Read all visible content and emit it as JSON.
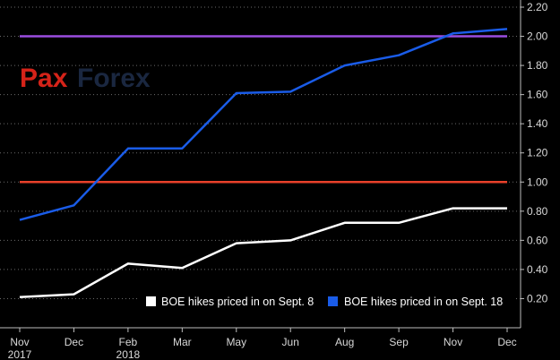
{
  "watermark": {
    "part1": "Pax",
    "part2": "Forex"
  },
  "colors": {
    "background": "#000000",
    "grid": "#6b6b6b",
    "white_series": "#ffffff",
    "blue_series": "#1a5ce8",
    "purple_line": "#9b4de0",
    "red_line": "#e8402a"
  },
  "chart_data": {
    "type": "line",
    "x": [
      "Nov\n2017",
      "Dec",
      "Feb\n2018",
      "Mar",
      "May",
      "Jun",
      "Aug",
      "Sep",
      "Nov",
      "Dec"
    ],
    "series": [
      {
        "name": "BOE hikes priced in on Sept. 8",
        "color": "#ffffff",
        "values": [
          0.21,
          0.23,
          0.44,
          0.41,
          0.58,
          0.6,
          0.72,
          0.72,
          0.82,
          0.82
        ]
      },
      {
        "name": "BOE hikes priced in on Sept. 18",
        "color": "#1a5ce8",
        "values": [
          0.74,
          0.84,
          1.23,
          1.23,
          1.61,
          1.62,
          1.8,
          1.87,
          2.02,
          2.05
        ]
      }
    ],
    "reference_lines": [
      {
        "value": 2.0,
        "color": "#9b4de0"
      },
      {
        "value": 1.0,
        "color": "#e8402a"
      }
    ],
    "yticks": [
      "0.20",
      "0.40",
      "0.60",
      "0.80",
      "1.00",
      "1.20",
      "1.40",
      "1.60",
      "1.80",
      "2.00",
      "2.20"
    ],
    "ylim": [
      0.0,
      2.2
    ],
    "y_axis_side": "right",
    "grid": "horizontal-dotted",
    "legend": "bottom-right",
    "title": "",
    "xlabel": "",
    "ylabel": ""
  }
}
